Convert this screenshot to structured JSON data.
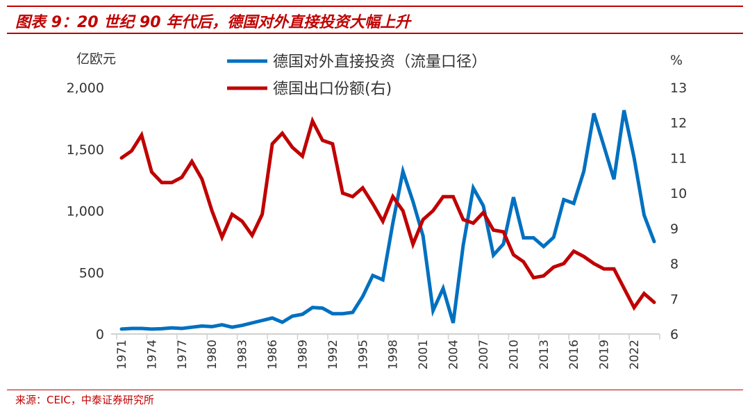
{
  "title": "图表 9：20 世纪 90 年代后，德国对外直接投资大幅上升",
  "source": "来源：CEIC，中泰证券研究所",
  "chart_data": {
    "type": "line",
    "ylabel_left": "亿欧元",
    "ylabel_right": "%",
    "ylim_left": [
      0,
      2000
    ],
    "yticks_left": [
      "0",
      "500",
      "1,000",
      "1,500",
      "2,000"
    ],
    "ylim_right": [
      6,
      13
    ],
    "yticks_right": [
      "6",
      "7",
      "8",
      "9",
      "10",
      "11",
      "12",
      "13"
    ],
    "xtick_labels": [
      "1971",
      "1974",
      "1977",
      "1980",
      "1983",
      "1986",
      "1989",
      "1992",
      "1995",
      "1998",
      "2001",
      "2004",
      "2007",
      "2010",
      "2013",
      "2016",
      "2019",
      "2022"
    ],
    "x": [
      1971,
      1972,
      1973,
      1974,
      1975,
      1976,
      1977,
      1978,
      1979,
      1980,
      1981,
      1982,
      1983,
      1984,
      1985,
      1986,
      1987,
      1988,
      1989,
      1990,
      1991,
      1992,
      1993,
      1994,
      1995,
      1996,
      1997,
      1998,
      1999,
      2000,
      2001,
      2002,
      2003,
      2004,
      2005,
      2006,
      2007,
      2008,
      2009,
      2010,
      2011,
      2012,
      2013,
      2014,
      2015,
      2016,
      2017,
      2018,
      2019,
      2020,
      2021,
      2022,
      2023,
      2024
    ],
    "legend_placement": "top-center",
    "grid": false,
    "series": [
      {
        "name": "德国对外直接投资（流量口径）",
        "axis": "left",
        "color": "#0070c0",
        "values": [
          40,
          45,
          45,
          40,
          43,
          50,
          45,
          55,
          65,
          60,
          75,
          55,
          70,
          90,
          110,
          130,
          95,
          145,
          160,
          215,
          210,
          165,
          165,
          175,
          305,
          475,
          440,
          900,
          1320,
          1075,
          795,
          190,
          370,
          90,
          720,
          1185,
          1040,
          640,
          730,
          1110,
          780,
          780,
          710,
          785,
          1090,
          1060,
          1320,
          1790,
          1525,
          1255,
          1815,
          1430,
          965,
          750
        ]
      },
      {
        "name": "德国出口份额(右)",
        "axis": "right",
        "color": "#c00000",
        "values": [
          11.0,
          11.2,
          11.65,
          10.6,
          10.3,
          10.3,
          10.45,
          10.9,
          10.4,
          9.5,
          8.75,
          9.4,
          9.2,
          8.8,
          9.4,
          11.4,
          11.7,
          11.3,
          11.05,
          12.05,
          11.5,
          11.4,
          10.0,
          9.9,
          10.15,
          9.7,
          9.2,
          9.9,
          9.5,
          8.55,
          9.25,
          9.5,
          9.9,
          9.9,
          9.25,
          9.15,
          9.45,
          8.95,
          8.9,
          8.25,
          8.05,
          7.6,
          7.65,
          7.9,
          8.0,
          8.35,
          8.2,
          8.0,
          7.85,
          7.85,
          7.3,
          6.75,
          7.15,
          6.9
        ]
      }
    ]
  }
}
